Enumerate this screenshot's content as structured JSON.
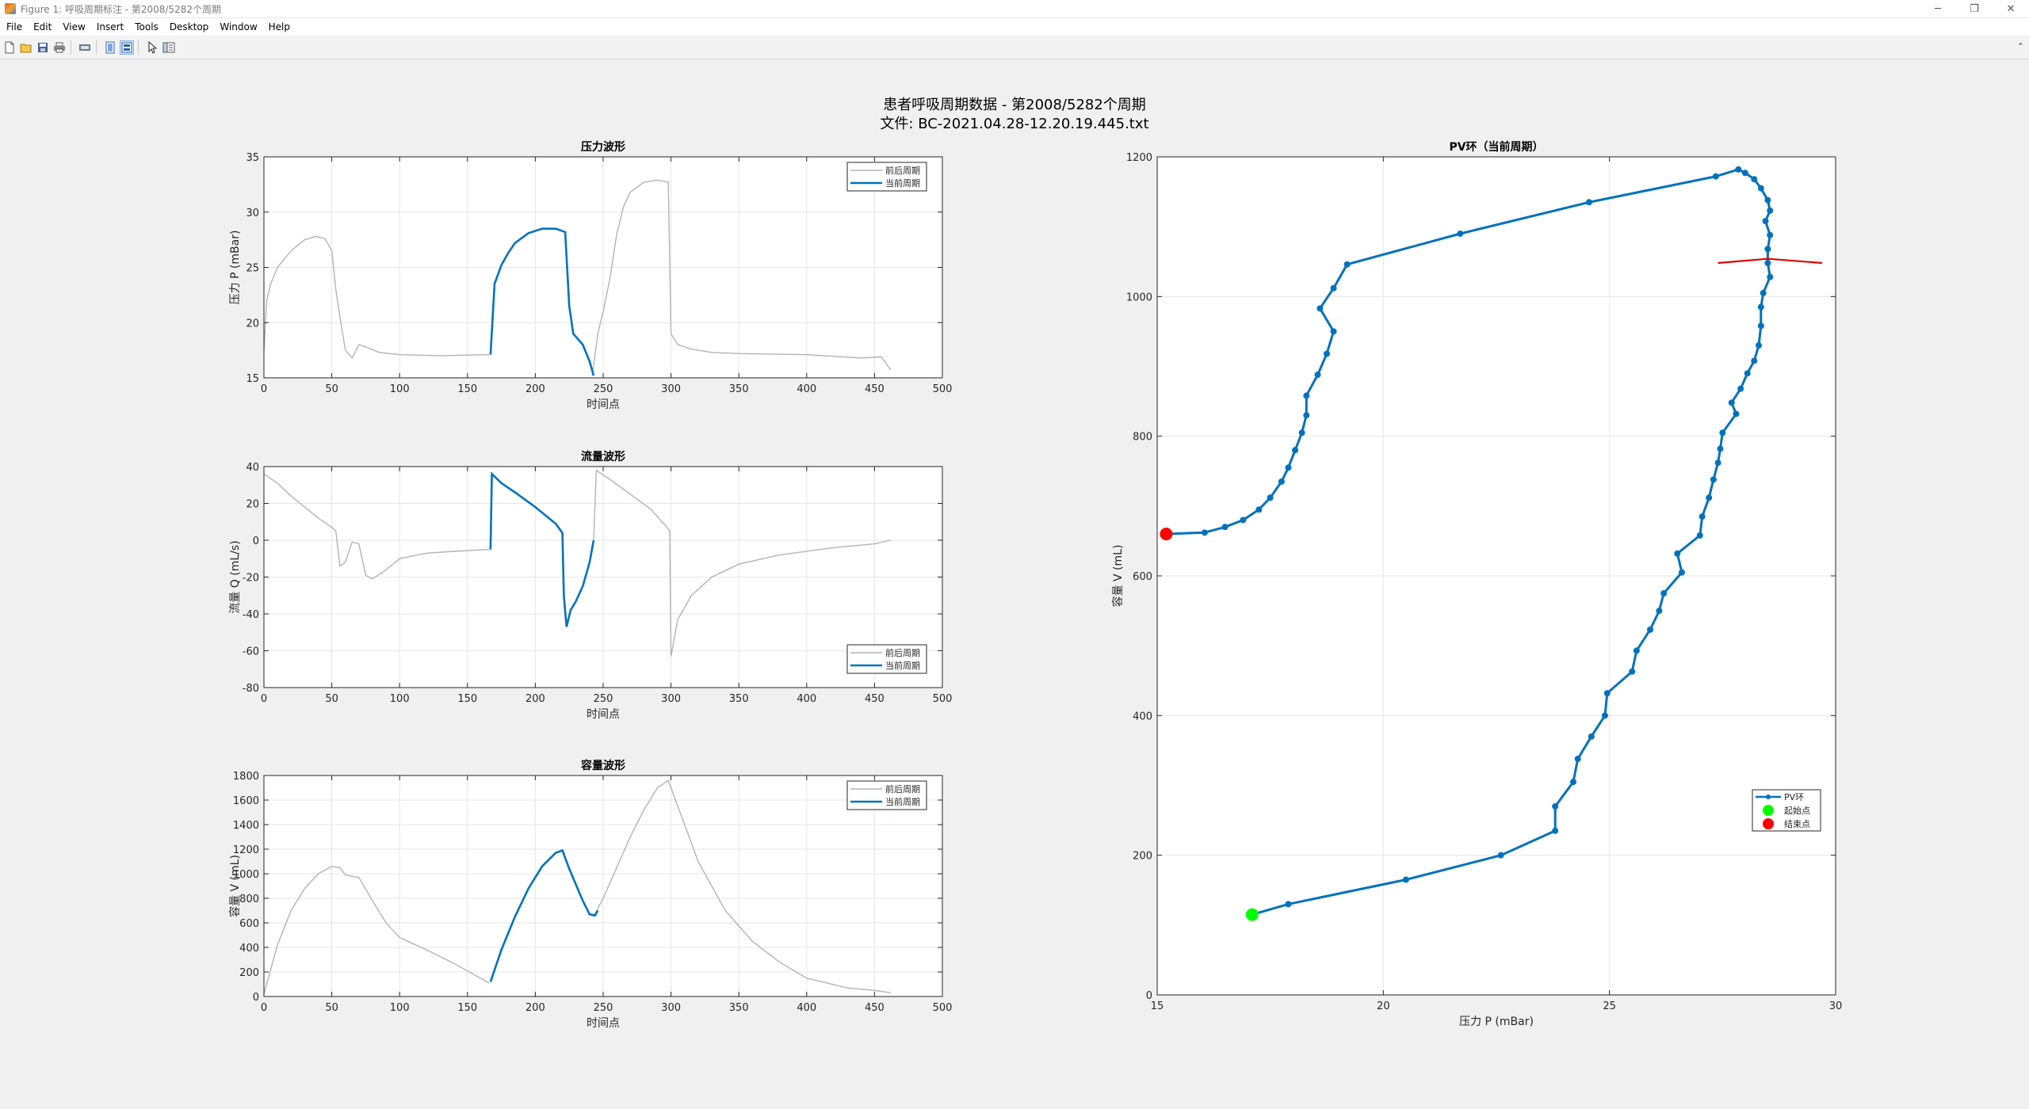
{
  "window": {
    "title": "Figure 1: 呼吸周期标注 - 第2008/5282个周期",
    "controls": {
      "minimize": "─",
      "restore": "❐",
      "close": "✕"
    }
  },
  "menu": [
    "File",
    "Edit",
    "View",
    "Insert",
    "Tools",
    "Desktop",
    "Window",
    "Help"
  ],
  "toolbar": {
    "icons": [
      "new-figure-icon",
      "open-file-icon",
      "save-icon",
      "print-icon",
      "print-preview-icon",
      "dock-icon",
      "toggle-legend-icon",
      "arrow-pointer-icon",
      "property-editor-icon"
    ],
    "collapse": "⌃"
  },
  "figure": {
    "suptitle_line1": "患者呼吸周期数据 - 第2008/5282个周期",
    "suptitle_line2": "文件: BC-2021.04.28-12.20.19.445.txt"
  },
  "colors": {
    "current": "#0072bd",
    "history": "#b3b3b3",
    "start": "#00ff00",
    "end": "#ff0000",
    "grid": "#e6e6e6"
  },
  "legend_labels": {
    "history": "前后周期",
    "current": "当前周期",
    "pv": "PV环",
    "start": "起始点",
    "end": "结束点"
  },
  "chart_data": [
    {
      "type": "line",
      "title": "压力波形",
      "xlabel": "时间点",
      "ylabel": "压力 P (mBar)",
      "xlim": [
        0,
        500
      ],
      "ylim": [
        15,
        35
      ],
      "xticks": [
        0,
        50,
        100,
        150,
        200,
        250,
        300,
        350,
        400,
        450,
        500
      ],
      "yticks": [
        15,
        20,
        25,
        30,
        35
      ],
      "legend_position": "top-right",
      "grid": true,
      "series": [
        {
          "name": "前后周期",
          "style": "history",
          "segments": [
            [
              [
                0,
                17.5
              ],
              [
                2,
                22
              ],
              [
                5,
                23.5
              ],
              [
                10,
                25
              ],
              [
                20,
                26.5
              ],
              [
                30,
                27.5
              ],
              [
                38,
                27.8
              ],
              [
                45,
                27.6
              ],
              [
                50,
                26.5
              ],
              [
                53,
                23
              ],
              [
                56,
                20.5
              ],
              [
                60,
                17.5
              ],
              [
                65,
                16.8
              ],
              [
                70,
                18
              ],
              [
                75,
                17.8
              ],
              [
                85,
                17.3
              ],
              [
                100,
                17.1
              ],
              [
                130,
                17
              ],
              [
                166,
                17.1
              ]
            ],
            [
              [
                242,
                15.2
              ],
              [
                246,
                19
              ],
              [
                250,
                21
              ],
              [
                255,
                24
              ],
              [
                260,
                28
              ],
              [
                265,
                30.5
              ],
              [
                270,
                31.8
              ],
              [
                280,
                32.7
              ],
              [
                290,
                32.9
              ],
              [
                298,
                32.7
              ],
              [
                300,
                19
              ],
              [
                305,
                18
              ],
              [
                315,
                17.6
              ],
              [
                330,
                17.3
              ],
              [
                350,
                17.2
              ],
              [
                400,
                17.1
              ],
              [
                440,
                16.8
              ],
              [
                455,
                16.9
              ],
              [
                462,
                15.7
              ]
            ]
          ]
        },
        {
          "name": "当前周期",
          "style": "current",
          "segments": [
            [
              [
                167,
                17.1
              ],
              [
                170,
                23.5
              ],
              [
                175,
                25.2
              ],
              [
                180,
                26.3
              ],
              [
                185,
                27.2
              ],
              [
                195,
                28.1
              ],
              [
                205,
                28.5
              ],
              [
                215,
                28.5
              ],
              [
                222,
                28.2
              ],
              [
                225,
                21.5
              ],
              [
                228,
                19
              ],
              [
                235,
                18
              ],
              [
                240,
                16.5
              ],
              [
                243,
                15.2
              ]
            ]
          ]
        }
      ]
    },
    {
      "type": "line",
      "title": "流量波形",
      "xlabel": "时间点",
      "ylabel": "流量 Q (mL/s)",
      "xlim": [
        0,
        500
      ],
      "ylim": [
        -80,
        40
      ],
      "xticks": [
        0,
        50,
        100,
        150,
        200,
        250,
        300,
        350,
        400,
        450,
        500
      ],
      "yticks": [
        -80,
        -60,
        -40,
        -20,
        0,
        20,
        40
      ],
      "legend_position": "bottom-right",
      "grid": true,
      "series": [
        {
          "name": "前后周期",
          "style": "history",
          "segments": [
            [
              [
                0,
                36
              ],
              [
                10,
                31
              ],
              [
                20,
                24
              ],
              [
                30,
                18
              ],
              [
                40,
                12
              ],
              [
                50,
                7
              ],
              [
                53,
                5
              ],
              [
                56,
                -14
              ],
              [
                60,
                -12
              ],
              [
                65,
                -1
              ],
              [
                70,
                -2
              ],
              [
                75,
                -19
              ],
              [
                80,
                -21
              ],
              [
                90,
                -16
              ],
              [
                100,
                -10
              ],
              [
                120,
                -7
              ],
              [
                140,
                -6
              ],
              [
                166,
                -5
              ]
            ],
            [
              [
                243,
                0
              ],
              [
                245,
                38
              ],
              [
                255,
                33
              ],
              [
                270,
                25
              ],
              [
                285,
                17
              ],
              [
                297,
                7
              ],
              [
                299,
                5
              ],
              [
                300,
                -63
              ],
              [
                305,
                -43
              ],
              [
                315,
                -30
              ],
              [
                330,
                -20
              ],
              [
                350,
                -13
              ],
              [
                380,
                -8
              ],
              [
                420,
                -4
              ],
              [
                450,
                -2
              ],
              [
                462,
                0
              ]
            ]
          ]
        },
        {
          "name": "当前周期",
          "style": "current",
          "segments": [
            [
              [
                167,
                -5
              ],
              [
                168,
                36
              ],
              [
                175,
                31
              ],
              [
                185,
                26
              ],
              [
                200,
                18
              ],
              [
                215,
                9
              ],
              [
                220,
                4
              ],
              [
                221,
                -30
              ],
              [
                223,
                -47
              ],
              [
                226,
                -38
              ],
              [
                230,
                -33
              ],
              [
                235,
                -25
              ],
              [
                240,
                -12
              ],
              [
                243,
                0
              ]
            ]
          ]
        }
      ]
    },
    {
      "type": "line",
      "title": "容量波形",
      "xlabel": "时间点",
      "ylabel": "容量 V (mL)",
      "xlim": [
        0,
        500
      ],
      "ylim": [
        0,
        1800
      ],
      "xticks": [
        0,
        50,
        100,
        150,
        200,
        250,
        300,
        350,
        400,
        450,
        500
      ],
      "yticks": [
        0,
        200,
        400,
        600,
        800,
        1000,
        1200,
        1400,
        1600,
        1800
      ],
      "legend_position": "top-right",
      "grid": true,
      "series": [
        {
          "name": "前后周期",
          "style": "history",
          "segments": [
            [
              [
                0,
                20
              ],
              [
                10,
                420
              ],
              [
                20,
                700
              ],
              [
                30,
                880
              ],
              [
                40,
                1000
              ],
              [
                50,
                1060
              ],
              [
                56,
                1050
              ],
              [
                60,
                990
              ],
              [
                70,
                970
              ],
              [
                80,
                780
              ],
              [
                90,
                600
              ],
              [
                100,
                480
              ],
              [
                120,
                380
              ],
              [
                140,
                270
              ],
              [
                166,
                110
              ]
            ],
            [
              [
                243,
                650
              ],
              [
                250,
                800
              ],
              [
                260,
                1050
              ],
              [
                270,
                1300
              ],
              [
                280,
                1520
              ],
              [
                290,
                1700
              ],
              [
                298,
                1760
              ],
              [
                305,
                1550
              ],
              [
                320,
                1100
              ],
              [
                340,
                700
              ],
              [
                360,
                450
              ],
              [
                380,
                280
              ],
              [
                400,
                150
              ],
              [
                430,
                70
              ],
              [
                450,
                50
              ],
              [
                462,
                30
              ]
            ]
          ]
        },
        {
          "name": "当前周期",
          "style": "current",
          "segments": [
            [
              [
                167,
                120
              ],
              [
                175,
                380
              ],
              [
                185,
                650
              ],
              [
                195,
                880
              ],
              [
                205,
                1060
              ],
              [
                215,
                1170
              ],
              [
                220,
                1190
              ],
              [
                225,
                1040
              ],
              [
                235,
                780
              ],
              [
                240,
                670
              ],
              [
                244,
                660
              ],
              [
                246,
                700
              ]
            ]
          ]
        }
      ]
    },
    {
      "type": "line",
      "title": "PV环（当前周期）",
      "xlabel": "压力 P (mBar)",
      "ylabel": "容量 V (mL)",
      "xlim": [
        15,
        30
      ],
      "ylim": [
        0,
        1200
      ],
      "xticks": [
        15,
        20,
        25,
        30
      ],
      "yticks": [
        0,
        200,
        400,
        600,
        800,
        1000,
        1200
      ],
      "legend_position": "bottom-right",
      "grid": true,
      "series": [
        {
          "name": "PV环",
          "style": "pv",
          "points": [
            [
              17.1,
              115
            ],
            [
              17.9,
              130
            ],
            [
              20.5,
              165
            ],
            [
              22.6,
              200
            ],
            [
              23.8,
              235
            ],
            [
              23.8,
              270
            ],
            [
              24.2,
              305
            ],
            [
              24.3,
              338
            ],
            [
              24.6,
              370
            ],
            [
              24.9,
              400
            ],
            [
              24.95,
              432
            ],
            [
              25.5,
              463
            ],
            [
              25.6,
              493
            ],
            [
              25.9,
              523
            ],
            [
              26.1,
              550
            ],
            [
              26.2,
              575
            ],
            [
              26.6,
              605
            ],
            [
              26.5,
              632
            ],
            [
              27.0,
              658
            ],
            [
              27.05,
              685
            ],
            [
              27.2,
              712
            ],
            [
              27.3,
              738
            ],
            [
              27.4,
              762
            ],
            [
              27.45,
              782
            ],
            [
              27.5,
              805
            ],
            [
              27.8,
              832
            ],
            [
              27.7,
              848
            ],
            [
              27.9,
              868
            ],
            [
              28.05,
              890
            ],
            [
              28.2,
              908
            ],
            [
              28.3,
              930
            ],
            [
              28.35,
              958
            ],
            [
              28.35,
              985
            ],
            [
              28.4,
              1005
            ],
            [
              28.55,
              1028
            ],
            [
              28.5,
              1048
            ],
            [
              28.5,
              1068
            ],
            [
              28.55,
              1088
            ],
            [
              28.45,
              1108
            ],
            [
              28.55,
              1123
            ],
            [
              28.5,
              1138
            ],
            [
              28.35,
              1155
            ],
            [
              28.2,
              1168
            ],
            [
              28.0,
              1177
            ],
            [
              27.85,
              1182
            ],
            [
              27.35,
              1172
            ],
            [
              24.55,
              1135
            ],
            [
              21.7,
              1090
            ],
            [
              19.2,
              1046
            ],
            [
              18.9,
              1012
            ],
            [
              18.6,
              983
            ],
            [
              18.9,
              950
            ],
            [
              18.75,
              918
            ],
            [
              18.55,
              888
            ],
            [
              18.3,
              858
            ],
            [
              18.3,
              830
            ],
            [
              18.2,
              805
            ],
            [
              18.05,
              780
            ],
            [
              17.9,
              755
            ],
            [
              17.75,
              735
            ],
            [
              17.5,
              712
            ],
            [
              17.25,
              695
            ],
            [
              16.9,
              680
            ],
            [
              16.5,
              670
            ],
            [
              16.05,
              662
            ],
            [
              15.2,
              660
            ]
          ]
        },
        {
          "name": "起始点",
          "style": "start",
          "points": [
            [
              17.1,
              115
            ]
          ]
        },
        {
          "name": "结束点",
          "style": "end",
          "points": [
            [
              15.2,
              660
            ]
          ]
        },
        {
          "name": "",
          "style": "redline",
          "points": [
            [
              27.4,
              1048
            ],
            [
              28.5,
              1054
            ],
            [
              29.7,
              1048
            ]
          ]
        }
      ]
    }
  ]
}
